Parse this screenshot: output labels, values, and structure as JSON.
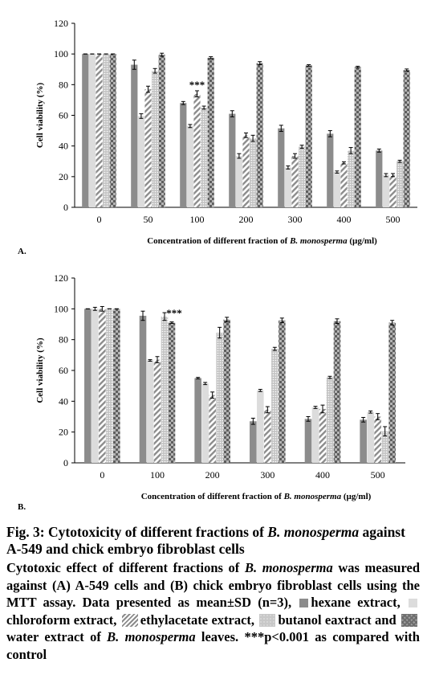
{
  "chart_data": [
    {
      "type": "bar",
      "panel_label": "A.",
      "xlabel_prefix": "Concentration of different fraction of ",
      "xlabel_italic": "B. monosperma",
      "xlabel_suffix": " (µg/ml)",
      "ylabel": "Cell viability (%)",
      "ylim": [
        0,
        120
      ],
      "yticks": [
        0,
        20,
        40,
        60,
        80,
        100,
        120
      ],
      "categories": [
        "0",
        "50",
        "100",
        "200",
        "300",
        "400",
        "500"
      ],
      "series": [
        {
          "key": "hexane",
          "values": [
            100,
            93,
            68,
            61,
            51.5,
            48,
            37
          ],
          "errors": [
            0,
            3,
            1,
            2,
            2,
            2,
            1
          ]
        },
        {
          "key": "chloroform",
          "values": [
            100,
            59.5,
            53,
            33.5,
            26,
            23,
            21
          ],
          "errors": [
            0,
            1.5,
            1,
            1.5,
            1,
            0.7,
            1
          ]
        },
        {
          "key": "ethylacetate",
          "values": [
            100,
            77,
            74,
            47,
            33.5,
            29,
            21
          ],
          "errors": [
            0,
            2,
            2,
            1.5,
            1.5,
            0.7,
            1
          ]
        },
        {
          "key": "butanol",
          "values": [
            100,
            89,
            65,
            45,
            39.5,
            37,
            30
          ],
          "errors": [
            0,
            1.5,
            1,
            2,
            1,
            2,
            0.7
          ]
        },
        {
          "key": "water",
          "values": [
            100,
            99.5,
            97.5,
            94,
            92.5,
            91.5,
            89.5
          ],
          "errors": [
            0,
            1,
            0.7,
            1,
            0.5,
            0.5,
            0.7
          ]
        }
      ],
      "annotations": [
        {
          "category": "100",
          "series": "ethylacetate",
          "text": "***"
        }
      ]
    },
    {
      "type": "bar",
      "panel_label": "B.",
      "xlabel_prefix": "Concentration of different fraction of ",
      "xlabel_italic": "B. monosperma",
      "xlabel_suffix": " (µg/ml)",
      "ylabel": "Cell viability (%)",
      "ylim": [
        0,
        120
      ],
      "yticks": [
        0,
        20,
        40,
        60,
        80,
        100,
        120
      ],
      "categories": [
        "0",
        "100",
        "200",
        "300",
        "400",
        "500"
      ],
      "series": [
        {
          "key": "hexane",
          "values": [
            100,
            95.5,
            55,
            27,
            28.5,
            28
          ],
          "errors": [
            0,
            3,
            0.5,
            2,
            1.5,
            1.5
          ]
        },
        {
          "key": "chloroform",
          "values": [
            100,
            66.5,
            51.5,
            47,
            36,
            33
          ],
          "errors": [
            1,
            0.5,
            0.7,
            0.7,
            0.7,
            0.7
          ]
        },
        {
          "key": "ethylacetate",
          "values": [
            100,
            67,
            44,
            34.5,
            35,
            30
          ],
          "errors": [
            1.5,
            2,
            2,
            2,
            2.5,
            2
          ]
        },
        {
          "key": "butanol",
          "values": [
            100,
            95,
            84.5,
            74,
            55.5,
            20.5
          ],
          "errors": [
            0,
            2.5,
            3.5,
            1,
            0.7,
            3
          ]
        },
        {
          "key": "water",
          "values": [
            100,
            91,
            93,
            92.5,
            92,
            91
          ],
          "errors": [
            0,
            0.5,
            1.5,
            1.5,
            1.5,
            1.5
          ]
        }
      ],
      "annotations": [
        {
          "category": "100",
          "series": "butanol",
          "text": "***"
        }
      ]
    }
  ],
  "caption": {
    "title_prefix": "Fig. 3: Cytotoxicity of different fractions of ",
    "title_italic": "B. monosperma",
    "title_suffix": " against A-549 and chick embryo fibroblast cells",
    "desc_part1": "Cytotoxic effect of different fractions of ",
    "desc_italic1": "B. monosperma",
    "desc_part2": " was measured against (A) A-549 cells and (B) chick embryo fibroblast cells using the MTT assay. Data presented as mean±SD (n=3), ",
    "legend_hexane": "hexane extract, ",
    "legend_chloroform": "chloroform extract, ",
    "legend_ethyl": "ethylacetate extract, ",
    "legend_butanol": "butanol eaxtract and ",
    "legend_water": "water extract",
    "desc_part3": " of ",
    "desc_italic2": "B. monosperma",
    "desc_part4": " leaves. ***p<0.001 as compared with control"
  },
  "colors": {
    "hexane": "#8c8c8c",
    "chloroform": "#dcdcdc",
    "ethylacetate_line": "#8c8c8c",
    "butanol": "#c8c8c8",
    "water": "#8a8a8a"
  }
}
